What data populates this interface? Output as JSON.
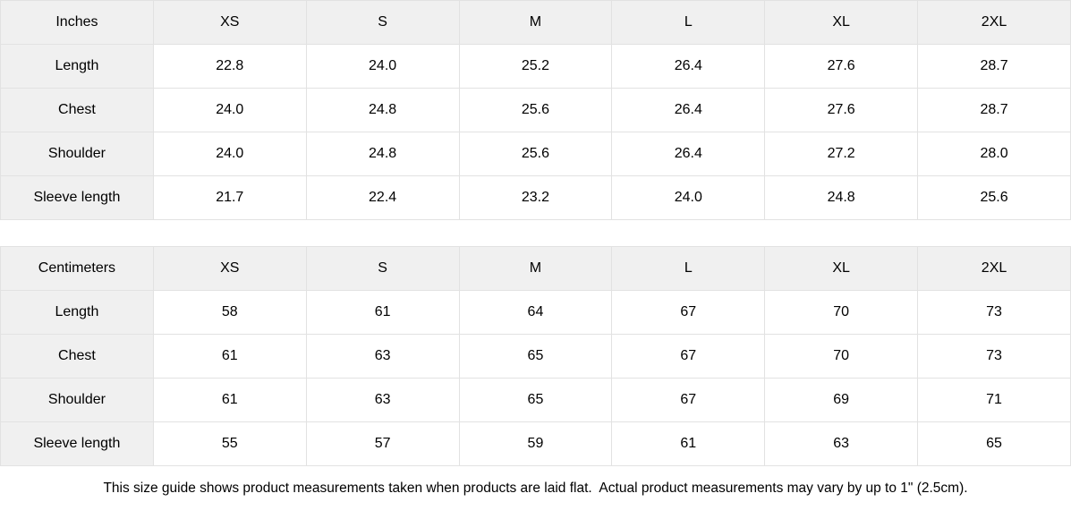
{
  "colors": {
    "header_bg": "#f0f0f0",
    "border": "#e2e2e2",
    "text": "#000000",
    "page_bg": "#ffffff"
  },
  "tables": [
    {
      "unit_label": "Inches",
      "sizes": [
        "XS",
        "S",
        "M",
        "L",
        "XL",
        "2XL"
      ],
      "rows": [
        {
          "label": "Length",
          "values": [
            "22.8",
            "24.0",
            "25.2",
            "26.4",
            "27.6",
            "28.7"
          ]
        },
        {
          "label": "Chest",
          "values": [
            "24.0",
            "24.8",
            "25.6",
            "26.4",
            "27.6",
            "28.7"
          ]
        },
        {
          "label": "Shoulder",
          "values": [
            "24.0",
            "24.8",
            "25.6",
            "26.4",
            "27.2",
            "28.0"
          ]
        },
        {
          "label": "Sleeve length",
          "values": [
            "21.7",
            "22.4",
            "23.2",
            "24.0",
            "24.8",
            "25.6"
          ]
        }
      ]
    },
    {
      "unit_label": "Centimeters",
      "sizes": [
        "XS",
        "S",
        "M",
        "L",
        "XL",
        "2XL"
      ],
      "rows": [
        {
          "label": "Length",
          "values": [
            "58",
            "61",
            "64",
            "67",
            "70",
            "73"
          ]
        },
        {
          "label": "Chest",
          "values": [
            "61",
            "63",
            "65",
            "67",
            "70",
            "73"
          ]
        },
        {
          "label": "Shoulder",
          "values": [
            "61",
            "63",
            "65",
            "67",
            "69",
            "71"
          ]
        },
        {
          "label": "Sleeve length",
          "values": [
            "55",
            "57",
            "59",
            "61",
            "63",
            "65"
          ]
        }
      ]
    }
  ],
  "footer": {
    "note": "This size guide shows product measurements taken when products are laid flat.  Actual product measurements may vary by up to 1\" (2.5cm)."
  }
}
